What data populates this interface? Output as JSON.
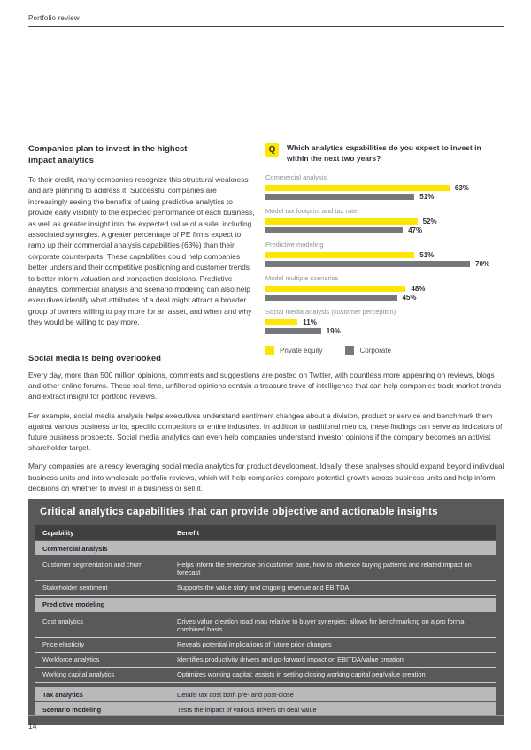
{
  "page": {
    "header": "Portfolio review",
    "page_number": "14"
  },
  "left_column": {
    "heading": "Companies plan to invest in the highest-impact analytics",
    "body": "To their credit, many companies recognize this structural weakness and are planning to address it. Successful companies are increasingly seeing the benefits of using predictive analytics to provide early visibility to the expected performance of each business, as well as greater insight into the expected value of a sale, including associated synergies. A greater percentage of PE firms expect to ramp up their commercial analysis capabilities (63%) than their corporate counterparts. These capabilities could help companies better understand their competitive positioning and customer trends to better inform valuation and transaction decisions. Predictive analytics, commercial analysis and scenario modeling can also help executives identify what attributes of a deal might attract a broader group of owners willing to pay more for an asset, and when and why they would be willing to pay more."
  },
  "chart": {
    "q_label": "Q",
    "question": "Which analytics capabilities do you expect to invest in within the next two years?",
    "legend": [
      {
        "label": "Private equity",
        "color": "#ffe600"
      },
      {
        "label": "Corporate",
        "color": "#77787b"
      }
    ]
  },
  "chart_data": {
    "type": "bar",
    "orientation": "horizontal",
    "title": "Which analytics capabilities do you expect to invest in within the next two years?",
    "categories": [
      "Commercial analysis",
      "Model tax footprint and tax rate",
      "Predictive modeling",
      "Model multiple scenarios",
      "Social media analysis (customer perception)"
    ],
    "series": [
      {
        "name": "Private equity",
        "color": "#ffe600",
        "values": [
          63,
          52,
          51,
          48,
          11
        ]
      },
      {
        "name": "Corporate",
        "color": "#77787b",
        "values": [
          51,
          47,
          70,
          45,
          19
        ]
      }
    ],
    "unit": "%",
    "xlim": [
      0,
      80
    ],
    "value_labels": true,
    "legend_position": "bottom"
  },
  "social_section": {
    "heading": "Social media is being overlooked",
    "paragraphs": [
      "Every day, more than 500 million opinions, comments and suggestions are posted on Twitter, with countless more appearing on reviews, blogs and other online forums. These real-time, unfiltered opinions contain a treasure trove of intelligence that can help companies track market trends and extract insight for portfolio reviews.",
      "For example, social media analysis helps executives understand sentiment changes about a division, product or service and benchmark them against various business units, specific competitors or entire industries. In addition to traditional metrics, these findings can serve as indicators of future business prospects. Social media analytics can even help companies understand investor opinions if the company becomes an activist shareholder target.",
      "Many companies are already leveraging social media analytics for product development. Ideally, these analyses should expand beyond individual business units and into wholesale portfolio reviews, which will help companies compare potential growth across business units and help inform decisions on whether to invest in a business or sell it."
    ]
  },
  "table": {
    "title": "Critical analytics capabilities that can provide objective and actionable insights",
    "columns": [
      "Capability",
      "Benefit"
    ],
    "rows": [
      {
        "type": "group",
        "capability": "Commercial analysis",
        "benefit": ""
      },
      {
        "type": "normal",
        "capability": "Customer segmentation and churn",
        "benefit": "Helps inform the enterprise on customer base, how to influence buying patterns and related impact on forecast"
      },
      {
        "type": "normal",
        "capability": "Stakeholder sentiment",
        "benefit": "Supports the value story and ongoing revenue and EBITDA"
      },
      {
        "type": "group",
        "capability": "Predictive modeling",
        "benefit": ""
      },
      {
        "type": "normal",
        "capability": "Cost analytics",
        "benefit": "Drives value creation road map relative to buyer synergies; allows for benchmarking on a pro forma combined basis"
      },
      {
        "type": "normal",
        "capability": "Price elasticity",
        "benefit": "Reveals potential implications of future price changes"
      },
      {
        "type": "normal",
        "capability": "Workforce analytics",
        "benefit": "Identifies productivity drivers and go-forward impact on EBITDA/value creation"
      },
      {
        "type": "normal",
        "capability": "Working capital analytics",
        "benefit": "Optimizes working capital; assists in setting closing working capital peg/value creation"
      },
      {
        "type": "highlight",
        "capability": "Tax analytics",
        "benefit": "Details tax cost both pre- and post-close"
      },
      {
        "type": "highlight",
        "capability": "Scenario modeling",
        "benefit": "Tests the impact of various drivers on deal value"
      }
    ]
  },
  "colors": {
    "accent_yellow": "#ffe600",
    "bar_gray": "#77787b",
    "table_bg": "#58595b",
    "table_header_bg": "#404041",
    "group_row_bg": "#b7b9bb",
    "text_dark": "#2e2e38"
  }
}
